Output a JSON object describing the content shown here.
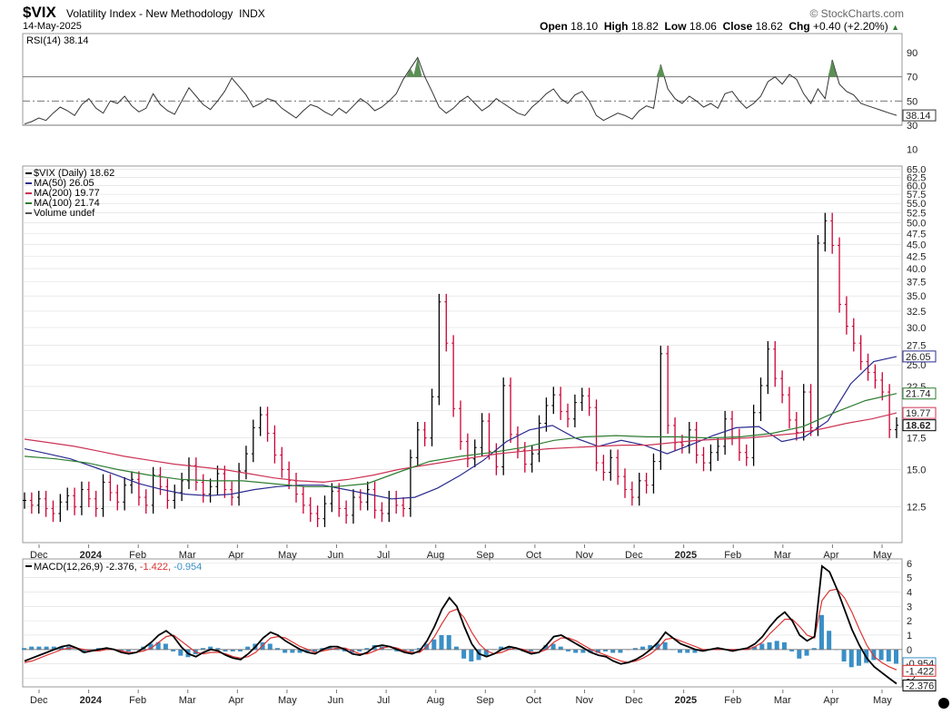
{
  "header": {
    "symbol": "$VIX",
    "name": "Volatility Index - New Methodology",
    "exchange": "INDX",
    "date": "14-May-2025",
    "brand": "© StockCharts.com",
    "open_label": "Open",
    "open": "18.10",
    "high_label": "High",
    "high": "18.82",
    "low_label": "Low",
    "low": "18.06",
    "close_label": "Close",
    "close": "18.62",
    "chg_label": "Chg",
    "chg": "+0.40 (+2.20%)"
  },
  "colors": {
    "price_up": "#000000",
    "price_down": "#cc0033",
    "ma50": "#2b2b8f",
    "ma200": "#cc3355",
    "ma100": "#2e7d32",
    "rsi": "#333333",
    "macd": "#000000",
    "signal": "#dd3333",
    "histogram": "#3a8fc6",
    "grid": "#dcdcdc"
  },
  "chart_data": [
    {
      "type": "line",
      "panel": "RSI",
      "legend": "RSI(14) 38.14",
      "y_ticks": [
        10,
        30,
        50,
        70,
        90
      ],
      "ylim": [
        0,
        100
      ],
      "levels": [
        30,
        50,
        70
      ],
      "last_value_label": "38.14",
      "series": [
        {
          "name": "RSI(14)",
          "values": [
            31,
            33,
            36,
            34,
            40,
            45,
            42,
            38,
            47,
            52,
            44,
            40,
            50,
            48,
            54,
            46,
            41,
            44,
            56,
            47,
            42,
            39,
            50,
            61,
            54,
            47,
            43,
            50,
            58,
            69,
            62,
            55,
            45,
            48,
            52,
            50,
            44,
            40,
            36,
            42,
            47,
            45,
            41,
            38,
            44,
            40,
            46,
            52,
            48,
            42,
            45,
            50,
            56,
            68,
            77,
            86,
            70,
            58,
            45,
            40,
            44,
            50,
            54,
            48,
            42,
            46,
            52,
            48,
            44,
            40,
            38,
            45,
            50,
            56,
            60,
            52,
            48,
            55,
            58,
            50,
            38,
            34,
            37,
            40,
            38,
            35,
            42,
            46,
            44,
            80,
            60,
            52,
            48,
            54,
            50,
            45,
            48,
            44,
            56,
            58,
            50,
            44,
            48,
            54,
            66,
            70,
            64,
            72,
            68,
            56,
            48,
            60,
            52,
            84,
            64,
            58,
            55,
            48,
            46,
            44,
            42,
            40,
            38.14
          ]
        }
      ]
    },
    {
      "type": "bar",
      "panel": "Price",
      "legend": [
        "$VIX (Daily) 18.62",
        "MA(50) 26.05",
        "MA(200) 19.77",
        "MA(100) 21.74",
        "Volume undef"
      ],
      "x_ticks": [
        "Dec",
        "2024",
        "Feb",
        "Mar",
        "Apr",
        "May",
        "Jun",
        "Jul",
        "Aug",
        "Sep",
        "Oct",
        "Nov",
        "Dec",
        "2025",
        "Feb",
        "Mar",
        "Apr",
        "May"
      ],
      "y_ticks": [
        "12.5",
        "15.0",
        "17.5",
        "20.0",
        "22.5",
        "25.0",
        "27.5",
        "30.0",
        "32.5",
        "35.0",
        "37.5",
        "40.0",
        "42.5",
        "45.0",
        "47.5",
        "50.0",
        "52.5",
        "55.0",
        "57.5",
        "60.0",
        "62.5",
        "65.0"
      ],
      "y_scale": "log",
      "ylim": [
        10.5,
        66
      ],
      "value_labels": {
        "ma50": "26.05",
        "ma100": "21.74",
        "ma200": "19.77",
        "close": "18.62"
      },
      "close_values": [
        12.9,
        12.6,
        13.0,
        12.4,
        12.1,
        12.8,
        13.2,
        12.5,
        13.6,
        13.0,
        12.4,
        14.1,
        13.4,
        12.8,
        13.9,
        14.3,
        13.1,
        12.6,
        14.6,
        13.8,
        12.9,
        13.4,
        14.2,
        15.3,
        14.1,
        13.3,
        13.8,
        14.7,
        13.6,
        13.1,
        14.9,
        16.2,
        18.4,
        19.6,
        17.9,
        16.1,
        15.0,
        14.2,
        13.3,
        12.6,
        12.1,
        11.8,
        12.7,
        13.5,
        12.4,
        12.0,
        13.1,
        12.8,
        13.6,
        12.3,
        12.1,
        13.0,
        12.6,
        12.4,
        15.9,
        18.2,
        17.5,
        21.4,
        34.0,
        27.8,
        20.2,
        17.2,
        15.8,
        16.7,
        19.0,
        16.4,
        15.2,
        22.6,
        17.8,
        16.5,
        15.4,
        16.2,
        18.8,
        20.5,
        21.6,
        19.9,
        19.2,
        20.8,
        21.5,
        20.3,
        15.5,
        14.8,
        15.9,
        14.5,
        13.6,
        13.1,
        14.2,
        13.9,
        15.6,
        26.4,
        18.6,
        17.1,
        16.9,
        18.2,
        16.1,
        15.5,
        16.3,
        16.8,
        19.2,
        17.6,
        16.3,
        15.9,
        19.8,
        22.6,
        27.0,
        23.4,
        21.6,
        19.1,
        18.0,
        21.9,
        18.4,
        45.3,
        50.5,
        44.8,
        33.6,
        30.2,
        27.8,
        25.4,
        24.1,
        23.2,
        21.9,
        18.22,
        18.62
      ],
      "series": [
        {
          "name": "MA(50)",
          "values": [
            16.6,
            16.2,
            15.8,
            15.2,
            14.6,
            14.0,
            13.6,
            13.3,
            13.2,
            13.3,
            13.6,
            13.8,
            13.9,
            13.9,
            13.6,
            13.3,
            13.0,
            13.1,
            13.7,
            14.6,
            15.7,
            17.2,
            18.2,
            18.6,
            17.5,
            16.8,
            17.3,
            16.9,
            16.2,
            16.9,
            17.7,
            18.4,
            18.5,
            17.2,
            17.6,
            19.0,
            22.8,
            25.4,
            26.05
          ]
        },
        {
          "name": "MA(200)",
          "values": [
            17.4,
            17.1,
            16.8,
            16.4,
            16.0,
            15.7,
            15.4,
            15.2,
            15.0,
            14.7,
            14.4,
            14.2,
            14.1,
            14.3,
            14.6,
            15.0,
            15.3,
            15.6,
            15.9,
            16.2,
            16.4,
            16.6,
            16.7,
            16.8,
            16.9,
            16.9,
            17.1,
            17.3,
            17.4,
            17.5,
            17.7,
            17.9,
            18.3,
            18.8,
            19.2,
            19.77
          ]
        },
        {
          "name": "MA(100)",
          "values": [
            16.0,
            15.8,
            15.5,
            15.0,
            14.6,
            14.3,
            14.2,
            14.2,
            14.0,
            13.8,
            13.8,
            14.0,
            14.8,
            15.6,
            16.0,
            16.3,
            16.7,
            17.3,
            17.6,
            17.7,
            17.6,
            17.6,
            17.5,
            17.6,
            17.9,
            18.5,
            19.8,
            21.0,
            21.74
          ]
        }
      ]
    },
    {
      "type": "line",
      "panel": "MACD",
      "legend": [
        "MACD(12,26,9) -2.376,",
        "-1.422,",
        "-0.954"
      ],
      "x_ticks": [
        "Dec",
        "2024",
        "Feb",
        "Mar",
        "Apr",
        "May",
        "Jun",
        "Jul",
        "Aug",
        "Sep",
        "Oct",
        "Nov",
        "Dec",
        "2025",
        "Feb",
        "Mar",
        "Apr",
        "May"
      ],
      "y_ticks": [
        "-2",
        "-1",
        "0",
        "1",
        "2",
        "3",
        "4",
        "5",
        "6"
      ],
      "ylim": [
        -2.6,
        6.3
      ],
      "value_labels": {
        "histogram": "-0.954",
        "signal": "-1.422",
        "macd": "-2.376"
      },
      "series": [
        {
          "name": "MACD",
          "values": [
            -0.8,
            -0.6,
            -0.4,
            -0.2,
            0.0,
            0.2,
            0.3,
            0.1,
            -0.2,
            -0.1,
            0.0,
            0.1,
            0.0,
            -0.2,
            -0.3,
            -0.2,
            0.1,
            0.5,
            1.0,
            1.3,
            0.9,
            0.2,
            -0.3,
            -0.5,
            -0.2,
            0.0,
            -0.1,
            -0.4,
            -0.6,
            -0.7,
            -0.3,
            0.2,
            0.8,
            1.2,
            1.0,
            0.6,
            0.3,
            0.0,
            -0.2,
            -0.3,
            0.0,
            0.2,
            0.2,
            0.0,
            -0.3,
            -0.4,
            -0.2,
            0.2,
            0.3,
            0.2,
            0.0,
            -0.2,
            -0.3,
            -0.1,
            0.6,
            1.6,
            2.8,
            3.6,
            3.0,
            1.6,
            0.4,
            -0.3,
            -0.5,
            -0.3,
            0.0,
            0.2,
            0.1,
            -0.1,
            -0.3,
            -0.2,
            0.3,
            0.9,
            1.0,
            0.7,
            0.4,
            0.1,
            -0.2,
            -0.4,
            -0.5,
            -0.8,
            -1.0,
            -0.9,
            -0.7,
            -0.4,
            0.0,
            0.5,
            1.2,
            0.8,
            0.4,
            0.2,
            0.0,
            -0.1,
            0.0,
            0.1,
            0.0,
            -0.1,
            0.0,
            0.1,
            0.4,
            0.9,
            1.6,
            2.2,
            2.6,
            2.0,
            1.0,
            0.6,
            0.9,
            5.8,
            5.4,
            4.2,
            2.8,
            1.4,
            0.3,
            -0.6,
            -1.2,
            -1.6,
            -2.0,
            -2.376
          ]
        },
        {
          "name": "Signal",
          "values": [
            -0.9,
            -0.8,
            -0.6,
            -0.4,
            -0.2,
            0.0,
            0.1,
            0.1,
            0.0,
            -0.1,
            -0.1,
            0.0,
            0.0,
            -0.1,
            -0.2,
            -0.2,
            -0.1,
            0.1,
            0.5,
            0.9,
            1.0,
            0.6,
            0.2,
            -0.2,
            -0.3,
            -0.2,
            -0.2,
            -0.3,
            -0.5,
            -0.6,
            -0.5,
            -0.2,
            0.3,
            0.8,
            0.9,
            0.8,
            0.5,
            0.2,
            0.0,
            -0.2,
            -0.1,
            0.0,
            0.1,
            0.1,
            -0.1,
            -0.3,
            -0.3,
            -0.1,
            0.1,
            0.2,
            0.1,
            -0.1,
            -0.2,
            -0.2,
            0.2,
            0.9,
            1.8,
            2.6,
            2.8,
            2.2,
            1.2,
            0.4,
            -0.1,
            -0.3,
            -0.2,
            0.0,
            0.1,
            0.0,
            -0.2,
            -0.2,
            0.0,
            0.5,
            0.8,
            0.8,
            0.6,
            0.3,
            0.0,
            -0.2,
            -0.4,
            -0.6,
            -0.8,
            -0.9,
            -0.8,
            -0.6,
            -0.3,
            0.1,
            0.7,
            0.8,
            0.6,
            0.4,
            0.2,
            0.0,
            0.0,
            0.0,
            0.0,
            0.0,
            0.0,
            0.0,
            0.2,
            0.5,
            1.1,
            1.6,
            2.1,
            2.1,
            1.6,
            1.0,
            0.8,
            3.4,
            4.1,
            4.2,
            3.6,
            2.6,
            1.4,
            0.3,
            -0.5,
            -0.9,
            -1.2,
            -1.422
          ]
        }
      ]
    }
  ]
}
